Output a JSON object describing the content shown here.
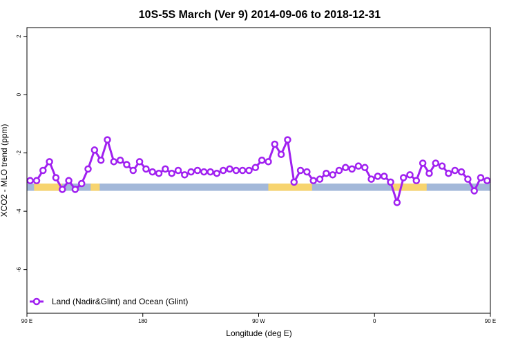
{
  "chart_data": {
    "type": "line",
    "title": "10S-5S March (Ver 9)   2014-09-06 to 2018-12-31",
    "xlabel": "Longitude (deg E)",
    "ylabel": "XCO2 - MLO trend (ppm)",
    "xlim": [
      90,
      450
    ],
    "ylim": [
      -7.5,
      2.3
    ],
    "x_ticks": [
      {
        "value": 90,
        "label": "90 E"
      },
      {
        "value": 180,
        "label": "180"
      },
      {
        "value": 270,
        "label": "90 W"
      },
      {
        "value": 360,
        "label": "0"
      },
      {
        "value": 450,
        "label": "90 E"
      },
      {
        "value": 540,
        "label": "180"
      }
    ],
    "y_ticks": [
      {
        "value": 2,
        "label": "2"
      },
      {
        "value": 0,
        "label": "0"
      },
      {
        "value": -2,
        "label": "-2"
      },
      {
        "value": -4,
        "label": "-4"
      },
      {
        "value": -6,
        "label": "-6"
      }
    ],
    "legend": {
      "position": "bottom-left",
      "entries": [
        "Land (Nadir&Glint) and Ocean (Glint)"
      ]
    },
    "series_color": "#a020f0",
    "ocean_color": "#a3b8d9",
    "land_color": "#f7d46f",
    "land_band_y": [
      -3.05,
      -3.3
    ],
    "land_segments": [
      [
        95.5,
        117.5
      ],
      [
        139.5,
        146.5
      ],
      [
        277.5,
        311.5
      ],
      [
        373.5,
        400.5
      ],
      [
        455.5,
        477.5
      ],
      [
        499.5,
        506.5
      ]
    ],
    "series": [
      {
        "name": "Land (Nadir&Glint) and Ocean (Glint)",
        "x": [
          92.5,
          97.5,
          102.5,
          107.5,
          112.5,
          117.5,
          122.5,
          127.5,
          132.5,
          137.5,
          142.5,
          147.5,
          152.5,
          157.5,
          162.5,
          167.5,
          172.5,
          177.5,
          182.5,
          187.5,
          192.5,
          197.5,
          202.5,
          207.5,
          212.5,
          217.5,
          222.5,
          227.5,
          232.5,
          237.5,
          242.5,
          247.5,
          252.5,
          257.5,
          262.5,
          267.5,
          272.5,
          277.5,
          282.5,
          287.5,
          292.5,
          297.5,
          302.5,
          307.5,
          312.5,
          317.5,
          322.5,
          327.5,
          332.5,
          337.5,
          342.5,
          347.5,
          352.5,
          357.5,
          362.5,
          367.5,
          372.5,
          377.5,
          382.5,
          387.5,
          392.5,
          397.5,
          402.5,
          407.5,
          412.5,
          417.5,
          422.5,
          427.5,
          432.5,
          437.5,
          442.5,
          447.5
        ],
        "y": [
          -2.95,
          -2.95,
          -2.6,
          -2.3,
          -2.85,
          -3.25,
          -2.95,
          -3.25,
          -3.05,
          -2.55,
          -1.9,
          -2.25,
          -1.55,
          -2.3,
          -2.25,
          -2.4,
          -2.6,
          -2.3,
          -2.55,
          -2.65,
          -2.7,
          -2.55,
          -2.7,
          -2.6,
          -2.75,
          -2.65,
          -2.6,
          -2.65,
          -2.65,
          -2.7,
          -2.6,
          -2.55,
          -2.6,
          -2.6,
          -2.6,
          -2.5,
          -2.25,
          -2.3,
          -1.7,
          -2.05,
          -1.55,
          -3.0,
          -2.6,
          -2.65,
          -2.95,
          -2.9,
          -2.7,
          -2.75,
          -2.6,
          -2.5,
          -2.55,
          -2.45,
          -2.5,
          -2.9,
          -2.8,
          -2.8,
          -3.0,
          -3.7,
          -2.85,
          -2.75,
          -2.95,
          -2.35,
          -2.7,
          -2.35,
          -2.45,
          -2.7,
          -2.6,
          -2.65,
          -2.9,
          -3.3,
          -2.85,
          -2.95
        ]
      }
    ]
  }
}
